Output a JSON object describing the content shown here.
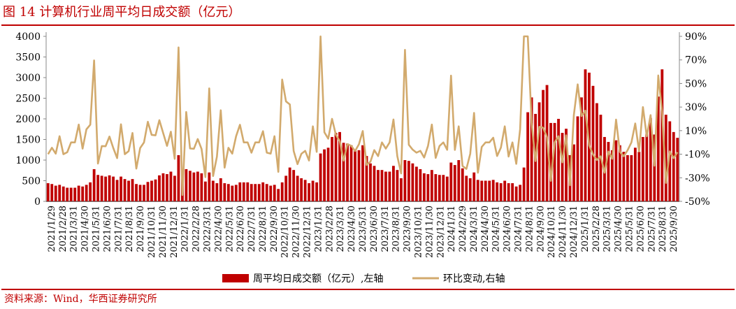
{
  "page": {
    "title": "图 14 计算机行业周平均日成交额（亿元）",
    "source": "资料来源：Wind，华西证券研究所"
  },
  "chart_data": {
    "type": "bar+line",
    "left_axis": {
      "min": 0,
      "max": 4000,
      "ticks": [
        "0",
        "500",
        "1000",
        "1500",
        "2000",
        "2500",
        "3000",
        "3500",
        "4000"
      ]
    },
    "right_axis": {
      "min": -50,
      "max": 90,
      "ticks": [
        "-50%",
        "-30%",
        "-10%",
        "10%",
        "30%",
        "50%",
        "70%",
        "90%"
      ]
    },
    "x_ticks": [
      "2021/1/29",
      "2021/2/28",
      "2021/3/31",
      "2021/4/30",
      "2021/5/31",
      "2021/6/30",
      "2021/7/31",
      "2021/8/31",
      "2021/9/30",
      "2021/10/31",
      "2021/11/30",
      "2021/12/31",
      "2022/1/31",
      "2022/2/28",
      "2022/3/31",
      "2022/4/30",
      "2022/5/31",
      "2022/6/30",
      "2022/7/31",
      "2022/8/31",
      "2022/9/30",
      "2022/10/31",
      "2022/11/30",
      "2022/12/31",
      "2023/1/31",
      "2023/2/28",
      "2023/3/31",
      "2023/4/30",
      "2023/5/31",
      "2023/6/30",
      "2023/7/31",
      "2023/8/31",
      "2023/9/30",
      "2023/10/31",
      "2023/11/30",
      "2023/12/31",
      "2024/1/31",
      "2024/2/29",
      "2024/3/31",
      "2024/4/30",
      "2024/5/31",
      "2024/6/30",
      "2024/7/31",
      "2024/8/31",
      "2024/9/30",
      "2024/10/31",
      "2024/11/30",
      "2024/12/31",
      "2025/1/31",
      "2025/2/28",
      "2025/3/31",
      "2025/4/30",
      "2025/5/31",
      "2025/6/30",
      "2025/7/31",
      "2025/8/31",
      "2025/9/30"
    ],
    "legend": [
      {
        "label": "周平均日成交额（亿元）,左轴",
        "color": "#c00000"
      },
      {
        "label": "环比变动,右轴",
        "color": "#d2aa6d"
      }
    ],
    "bars": [
      440,
      420,
      380,
      400,
      360,
      330,
      330,
      330,
      380,
      360,
      400,
      460,
      780,
      640,
      620,
      600,
      630,
      600,
      520,
      600,
      540,
      500,
      540,
      420,
      400,
      400,
      470,
      500,
      530,
      630,
      680,
      660,
      720,
      620,
      1120,
      620,
      780,
      740,
      700,
      720,
      680,
      480,
      700,
      500,
      440,
      560,
      440,
      420,
      380,
      400,
      460,
      460,
      460,
      420,
      420,
      420,
      460,
      420,
      380,
      400,
      300,
      460,
      620,
      820,
      760,
      620,
      560,
      520,
      440,
      500,
      460,
      1160,
      1260,
      1300,
      1560,
      1660,
      1680,
      1420,
      1400,
      1360,
      1260,
      1240,
      1360,
      1100,
      920,
      860,
      760,
      760,
      720,
      720,
      860,
      760,
      560,
      1000,
      980,
      920,
      840,
      780,
      680,
      660,
      760,
      660,
      640,
      640,
      600,
      940,
      880,
      1000,
      800,
      620,
      560,
      700,
      520,
      500,
      500,
      500,
      520,
      460,
      440,
      500,
      440,
      440,
      360,
      400,
      820,
      2160,
      2520,
      2120,
      2400,
      2700,
      2820,
      1900,
      1900,
      2000,
      1660,
      1760,
      1120,
      1380,
      2060,
      2520,
      3200,
      3120,
      2800,
      2380,
      2100,
      1560,
      1440,
      1240,
      1480,
      1360,
      1200,
      1120,
      1120,
      1300,
      1200,
      1560,
      1640,
      2020,
      1620,
      2540,
      3200,
      2100,
      1940,
      1680,
      1540
    ]
  }
}
